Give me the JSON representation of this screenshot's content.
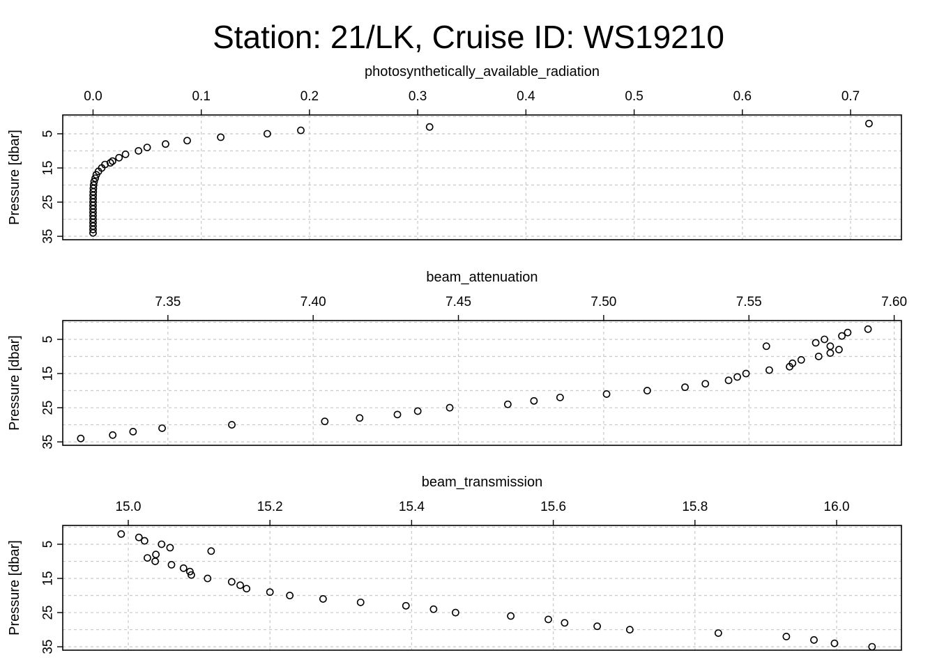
{
  "title": "Station: 21/LK, Cruise ID: WS19210",
  "chart_data": [
    {
      "type": "scatter",
      "xlabel": "photosynthetically_available_radiation",
      "ylabel": "Pressure [dbar]",
      "x_axis_position": "top",
      "y_reversed": true,
      "grid": true,
      "xlim": [
        -0.028,
        0.747
      ],
      "ylim": [
        -0.5,
        36
      ],
      "xticks": [
        "0.0",
        "0.1",
        "0.2",
        "0.3",
        "0.4",
        "0.5",
        "0.6",
        "0.7"
      ],
      "xtick_values": [
        0,
        0.1,
        0.2,
        0.3,
        0.4,
        0.5,
        0.6,
        0.7
      ],
      "yticks": [
        "5",
        "15",
        "25",
        "35"
      ],
      "ytick_values": [
        5,
        15,
        25,
        35
      ],
      "ygrid_values": [
        0,
        5,
        10,
        15,
        20,
        25,
        30,
        35
      ],
      "x": [
        0.717,
        0.311,
        0.192,
        0.161,
        0.118,
        0.087,
        0.067,
        0.05,
        0.042,
        0.03,
        0.024,
        0.018,
        0.016,
        0.011,
        0.008,
        0.005,
        0.003,
        0.002,
        0.001,
        0.0005,
        0.0003,
        0.0002,
        0.0001,
        0.0001,
        0.0,
        0.0,
        0.0,
        0.0,
        0.0,
        0.0,
        0.0,
        0.0,
        0.0,
        0.0
      ],
      "y": [
        2,
        3,
        4,
        5,
        6,
        7,
        8,
        9,
        10,
        11,
        12,
        13,
        13.5,
        14,
        15,
        16,
        17,
        18,
        19,
        20,
        21,
        22,
        23,
        24,
        25,
        26,
        27,
        28,
        29,
        30,
        31,
        32,
        33,
        34
      ]
    },
    {
      "type": "scatter",
      "xlabel": "beam_attenuation",
      "ylabel": "Pressure [dbar]",
      "x_axis_position": "top",
      "y_reversed": true,
      "grid": true,
      "xlim": [
        7.3138,
        7.6025
      ],
      "ylim": [
        -0.5,
        36
      ],
      "xticks": [
        "7.35",
        "7.40",
        "7.45",
        "7.50",
        "7.55",
        "7.60"
      ],
      "xtick_values": [
        7.35,
        7.4,
        7.45,
        7.5,
        7.55,
        7.6
      ],
      "yticks": [
        "5",
        "15",
        "25",
        "35"
      ],
      "ytick_values": [
        5,
        15,
        25,
        35
      ],
      "ygrid_values": [
        0,
        5,
        10,
        15,
        20,
        25,
        30,
        35
      ],
      "x": [
        7.591,
        7.584,
        7.582,
        7.576,
        7.573,
        7.578,
        7.556,
        7.581,
        7.578,
        7.574,
        7.568,
        7.565,
        7.564,
        7.557,
        7.549,
        7.546,
        7.543,
        7.535,
        7.528,
        7.515,
        7.501,
        7.485,
        7.476,
        7.467,
        7.447,
        7.436,
        7.429,
        7.416,
        7.404,
        7.372,
        7.348,
        7.338,
        7.331,
        7.32
      ],
      "y": [
        2,
        3,
        4,
        5,
        6,
        7,
        7,
        8,
        9,
        10,
        11,
        12,
        13,
        14,
        15,
        16,
        17,
        18,
        19,
        20,
        21,
        22,
        23,
        24,
        25,
        26,
        27,
        28,
        29,
        30,
        31,
        32,
        33,
        34
      ]
    },
    {
      "type": "scatter",
      "xlabel": "beam_transmission",
      "ylabel": "Pressure [dbar]",
      "x_axis_position": "top",
      "y_reversed": true,
      "grid": true,
      "xlim": [
        14.9075,
        16.0915
      ],
      "ylim": [
        -0.5,
        36
      ],
      "xticks": [
        "15.0",
        "15.2",
        "15.4",
        "15.6",
        "15.8",
        "16.0"
      ],
      "xtick_values": [
        15.0,
        15.2,
        15.4,
        15.6,
        15.8,
        16.0
      ],
      "yticks": [
        "5",
        "15",
        "25",
        "35"
      ],
      "ytick_values": [
        5,
        15,
        25,
        35
      ],
      "ygrid_values": [
        0,
        5,
        10,
        15,
        20,
        25,
        30,
        35
      ],
      "x": [
        14.99,
        15.015,
        15.023,
        15.047,
        15.059,
        15.117,
        15.039,
        15.027,
        15.038,
        15.061,
        15.078,
        15.087,
        15.089,
        15.112,
        15.146,
        15.158,
        15.167,
        15.2,
        15.228,
        15.275,
        15.328,
        15.392,
        15.431,
        15.462,
        15.54,
        15.593,
        15.616,
        15.662,
        15.708,
        15.833,
        15.929,
        15.968,
        15.997,
        16.05
      ],
      "y": [
        2,
        3,
        4,
        5,
        6,
        7,
        8,
        9,
        10,
        11,
        12,
        13,
        14,
        15,
        16,
        17,
        18,
        19,
        20,
        21,
        22,
        23,
        24,
        25,
        26,
        27,
        28,
        29,
        30,
        31,
        32,
        33,
        34,
        35
      ]
    }
  ]
}
